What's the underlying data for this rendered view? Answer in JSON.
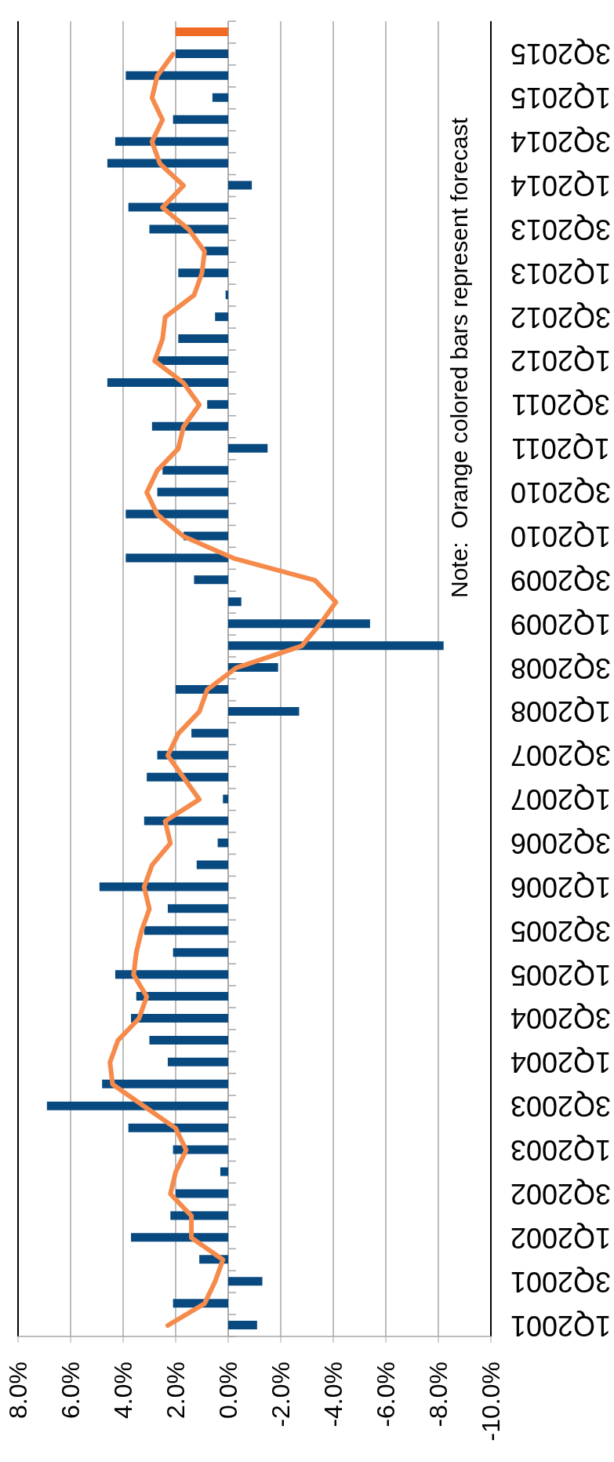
{
  "chart_data": {
    "type": "bar",
    "orientation": "horizontal",
    "grid": "x",
    "categories": [
      null,
      "3Q2015",
      null,
      "1Q2015",
      null,
      "3Q2014",
      null,
      "1Q2014",
      null,
      "3Q2013",
      null,
      "1Q2013",
      null,
      "3Q2012",
      null,
      "1Q2012",
      null,
      "3Q2011",
      null,
      "1Q2011",
      null,
      "3Q2010",
      null,
      "1Q2010",
      null,
      "3Q2009",
      null,
      "1Q2009",
      null,
      "3Q2008",
      null,
      "1Q2008",
      null,
      "3Q2007",
      null,
      "1Q2007",
      null,
      "3Q2006",
      null,
      "1Q2006",
      null,
      "3Q2005",
      null,
      "1Q2005",
      null,
      "3Q2004",
      null,
      "1Q2004",
      null,
      "3Q2003",
      null,
      "1Q2003",
      null,
      "3Q2002",
      null,
      "1Q2002",
      null,
      "3Q2001",
      null,
      "1Q2001"
    ],
    "series": [
      {
        "colors": [
          "#ef6a22",
          "#084a80",
          "#084a80",
          "#084a80",
          "#084a80",
          "#084a80",
          "#084a80",
          "#084a80",
          "#084a80",
          "#084a80",
          "#084a80",
          "#084a80",
          "#084a80",
          "#084a80",
          "#084a80",
          "#084a80",
          "#084a80",
          "#084a80",
          "#084a80",
          "#084a80",
          "#084a80",
          "#084a80",
          "#084a80",
          "#084a80",
          "#084a80",
          "#084a80",
          "#084a80",
          "#084a80",
          "#084a80",
          "#084a80",
          "#084a80",
          "#084a80",
          "#084a80",
          "#084a80",
          "#084a80",
          "#084a80",
          "#084a80",
          "#084a80",
          "#084a80",
          "#084a80",
          "#084a80",
          "#084a80",
          "#084a80",
          "#084a80",
          "#084a80",
          "#084a80",
          "#084a80",
          "#084a80",
          "#084a80",
          "#084a80",
          "#084a80",
          "#084a80",
          "#084a80",
          "#084a80",
          "#084a80",
          "#084a80",
          "#084a80",
          "#084a80",
          "#084a80",
          "#084a80"
        ],
        "values": [
          2.0,
          2.0,
          3.9,
          0.6,
          2.1,
          4.3,
          4.6,
          -0.9,
          3.8,
          3.0,
          0.9,
          1.9,
          0.1,
          0.5,
          1.9,
          2.7,
          4.6,
          0.8,
          2.9,
          -1.5,
          2.5,
          2.7,
          3.9,
          1.7,
          3.9,
          1.3,
          -0.5,
          -5.4,
          -8.2,
          -1.9,
          2.0,
          -2.7,
          1.4,
          2.7,
          3.1,
          0.2,
          3.2,
          0.4,
          1.2,
          4.9,
          2.3,
          3.2,
          2.1,
          4.3,
          3.5,
          3.7,
          3.0,
          2.3,
          4.8,
          6.9,
          3.8,
          2.1,
          0.3,
          2.0,
          2.2,
          3.7,
          1.1,
          -1.3,
          2.1,
          -1.1
        ]
      },
      {
        "type": "line",
        "color": "#f58a4b",
        "values": [
          null,
          2.1,
          2.7,
          2.9,
          2.5,
          2.9,
          2.6,
          1.7,
          2.5,
          1.5,
          0.9,
          1.0,
          1.3,
          2.4,
          2.5,
          2.8,
          1.7,
          1.1,
          1.7,
          1.9,
          2.7,
          3.1,
          2.7,
          1.7,
          -0.2,
          -3.3,
          -4.1,
          -3.5,
          -2.8,
          -0.3,
          0.8,
          1.1,
          1.9,
          2.3,
          1.7,
          1.1,
          2.4,
          2.2,
          2.9,
          3.2,
          3.0,
          3.3,
          3.5,
          3.6,
          3.1,
          3.4,
          4.2,
          4.5,
          4.4,
          3.2,
          2.0,
          1.6,
          2.0,
          2.2,
          1.4,
          1.4,
          0.2,
          0.5,
          0.9,
          2.3
        ]
      }
    ],
    "xlim": [
      8,
      -10
    ],
    "xticks": [
      {
        "value": 8,
        "label": "8.0%"
      },
      {
        "value": 6,
        "label": "6.0%"
      },
      {
        "value": 4,
        "label": "4.0%"
      },
      {
        "value": 2,
        "label": "2.0%"
      },
      {
        "value": 0,
        "label": "0.0%"
      },
      {
        "value": -2,
        "label": "-2.0%"
      },
      {
        "value": -4,
        "label": "-4.0%"
      },
      {
        "value": -6,
        "label": "-6.0%"
      },
      {
        "value": -8,
        "label": "-8.0%"
      },
      {
        "value": -10,
        "label": "-10.0%"
      }
    ],
    "annotations": [
      "Note:  Orange colored bars represent forecast"
    ]
  }
}
